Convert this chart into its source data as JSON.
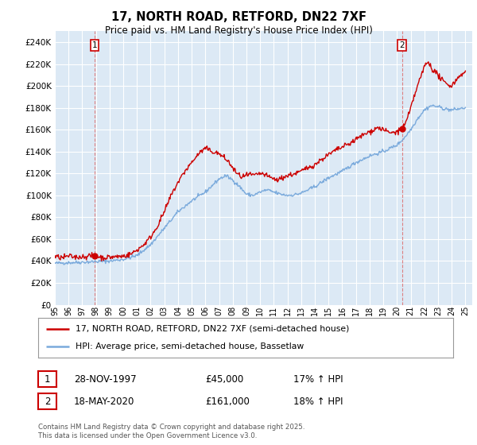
{
  "title": "17, NORTH ROAD, RETFORD, DN22 7XF",
  "subtitle": "Price paid vs. HM Land Registry's House Price Index (HPI)",
  "ytick_values": [
    0,
    20000,
    40000,
    60000,
    80000,
    100000,
    120000,
    140000,
    160000,
    180000,
    200000,
    220000,
    240000
  ],
  "ylim": [
    0,
    250000
  ],
  "xlim_start": 1995.0,
  "xlim_end": 2025.5,
  "xticks": [
    1995,
    1996,
    1997,
    1998,
    1999,
    2000,
    2001,
    2002,
    2003,
    2004,
    2005,
    2006,
    2007,
    2008,
    2009,
    2010,
    2011,
    2012,
    2013,
    2014,
    2015,
    2016,
    2017,
    2018,
    2019,
    2020,
    2021,
    2022,
    2023,
    2024,
    2025
  ],
  "sale1_date": 1997.91,
  "sale1_price": 45000,
  "sale1_label": "1",
  "sale2_date": 2020.38,
  "sale2_price": 161000,
  "sale2_label": "2",
  "property_color": "#cc0000",
  "hpi_color": "#7aaadc",
  "vline_color": "#dd6666",
  "legend_property": "17, NORTH ROAD, RETFORD, DN22 7XF (semi-detached house)",
  "legend_hpi": "HPI: Average price, semi-detached house, Bassetlaw",
  "table_row1": [
    "1",
    "28-NOV-1997",
    "£45,000",
    "17% ↑ HPI"
  ],
  "table_row2": [
    "2",
    "18-MAY-2020",
    "£161,000",
    "18% ↑ HPI"
  ],
  "footnote": "Contains HM Land Registry data © Crown copyright and database right 2025.\nThis data is licensed under the Open Government Licence v3.0.",
  "bg_color": "#ffffff",
  "plot_bg_color": "#dce9f5",
  "grid_color": "#ffffff"
}
